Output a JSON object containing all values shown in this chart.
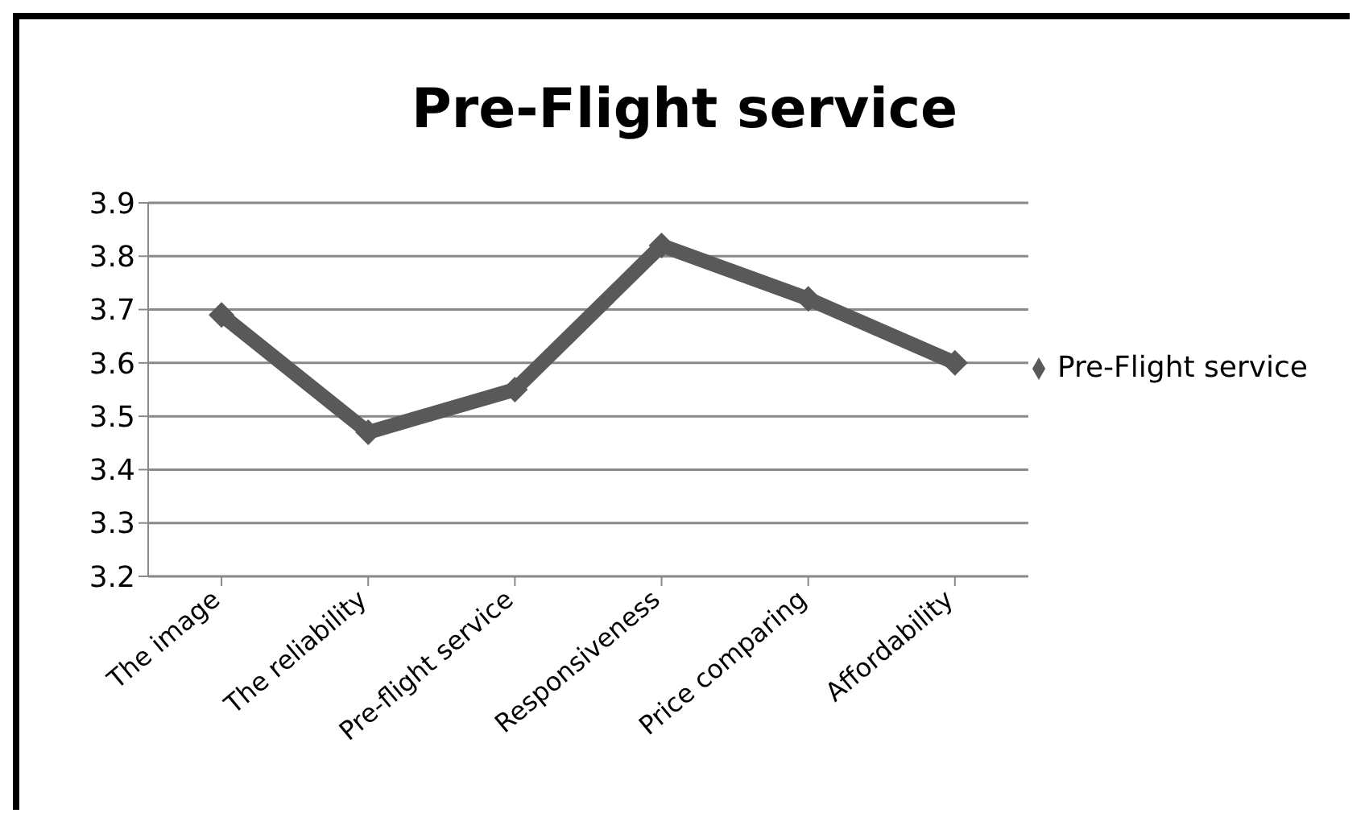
{
  "chart_data": {
    "type": "line",
    "title": "Pre-Flight service",
    "categories": [
      "The image",
      "The reliability",
      "Pre-flight service",
      "Responsiveness",
      "Price comparing",
      "Affordability"
    ],
    "series": [
      {
        "name": "Pre-Flight service",
        "color": "#595959",
        "values": [
          3.69,
          3.47,
          3.55,
          3.82,
          3.72,
          3.6
        ]
      }
    ],
    "ylim": [
      3.2,
      3.9
    ],
    "yticks": [
      3.2,
      3.3,
      3.4,
      3.5,
      3.6,
      3.7,
      3.8,
      3.9
    ],
    "grid": "y",
    "legend": "right",
    "marker": "diamond",
    "line_style": "solid"
  }
}
